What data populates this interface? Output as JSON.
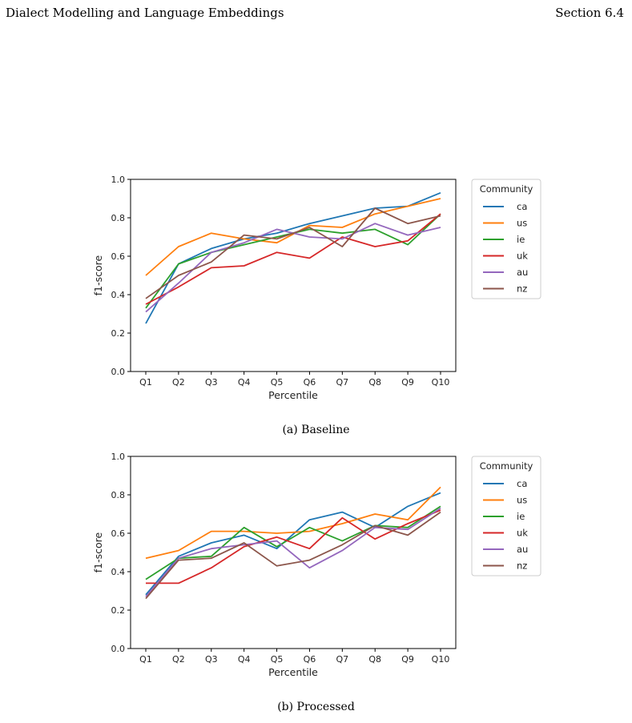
{
  "header": {
    "left": "Dialect Modelling and Language Embeddings",
    "right": "Section 6.4"
  },
  "colors": {
    "ca": "#1f77b4",
    "us": "#ff7f0e",
    "ie": "#2ca02c",
    "uk": "#d62728",
    "au": "#9467bd",
    "nz": "#8c564b"
  },
  "captions": [
    "(a) Baseline",
    "(b) Processed"
  ],
  "chart_data": [
    {
      "type": "line",
      "caption": "(a) Baseline",
      "xlabel": "Percentile",
      "ylabel": "f1-score",
      "ylim": [
        0.0,
        1.0
      ],
      "yticks": [
        "0.0",
        "0.2",
        "0.4",
        "0.6",
        "0.8",
        "1.0"
      ],
      "categories": [
        "Q1",
        "Q2",
        "Q3",
        "Q4",
        "Q5",
        "Q6",
        "Q7",
        "Q8",
        "Q9",
        "Q10"
      ],
      "grid": false,
      "legend": {
        "title": "Community",
        "placement": "outside-right-top"
      },
      "series": [
        {
          "name": "ca",
          "values": [
            0.25,
            0.56,
            0.64,
            0.69,
            0.72,
            0.77,
            0.81,
            0.85,
            0.86,
            0.93
          ]
        },
        {
          "name": "us",
          "values": [
            0.5,
            0.65,
            0.72,
            0.69,
            0.67,
            0.76,
            0.75,
            0.82,
            0.86,
            0.9
          ]
        },
        {
          "name": "ie",
          "values": [
            0.33,
            0.56,
            0.62,
            0.66,
            0.7,
            0.74,
            0.72,
            0.74,
            0.66,
            0.82
          ]
        },
        {
          "name": "uk",
          "values": [
            0.35,
            0.44,
            0.54,
            0.55,
            0.62,
            0.59,
            0.7,
            0.65,
            0.68,
            0.82
          ]
        },
        {
          "name": "au",
          "values": [
            0.31,
            0.46,
            0.62,
            0.67,
            0.74,
            0.7,
            0.69,
            0.77,
            0.71,
            0.75
          ]
        },
        {
          "name": "nz",
          "values": [
            0.38,
            0.5,
            0.57,
            0.71,
            0.69,
            0.75,
            0.65,
            0.85,
            0.77,
            0.81
          ]
        }
      ]
    },
    {
      "type": "line",
      "caption": "(b) Processed",
      "xlabel": "Percentile",
      "ylabel": "f1-score",
      "ylim": [
        0.0,
        1.0
      ],
      "yticks": [
        "0.0",
        "0.2",
        "0.4",
        "0.6",
        "0.8",
        "1.0"
      ],
      "categories": [
        "Q1",
        "Q2",
        "Q3",
        "Q4",
        "Q5",
        "Q6",
        "Q7",
        "Q8",
        "Q9",
        "Q10"
      ],
      "grid": false,
      "legend": {
        "title": "Community",
        "placement": "outside-right-top"
      },
      "series": [
        {
          "name": "ca",
          "values": [
            0.28,
            0.48,
            0.55,
            0.59,
            0.52,
            0.67,
            0.71,
            0.63,
            0.74,
            0.81
          ]
        },
        {
          "name": "us",
          "values": [
            0.47,
            0.51,
            0.61,
            0.61,
            0.6,
            0.61,
            0.65,
            0.7,
            0.67,
            0.84
          ]
        },
        {
          "name": "ie",
          "values": [
            0.36,
            0.47,
            0.48,
            0.63,
            0.53,
            0.63,
            0.56,
            0.64,
            0.63,
            0.74
          ]
        },
        {
          "name": "uk",
          "values": [
            0.34,
            0.34,
            0.42,
            0.53,
            0.58,
            0.52,
            0.68,
            0.57,
            0.65,
            0.72
          ]
        },
        {
          "name": "au",
          "values": [
            0.27,
            0.47,
            0.52,
            0.54,
            0.56,
            0.42,
            0.51,
            0.63,
            0.62,
            0.73
          ]
        },
        {
          "name": "nz",
          "values": [
            0.26,
            0.46,
            0.47,
            0.55,
            0.43,
            0.46,
            0.54,
            0.64,
            0.59,
            0.71
          ]
        }
      ]
    }
  ]
}
